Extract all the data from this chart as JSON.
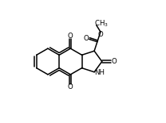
{
  "bg_color": "#ffffff",
  "line_color": "#000000",
  "line_width": 1.1,
  "figsize": [
    2.08,
    1.55
  ],
  "dpi": 100,
  "xlim": [
    0,
    10
  ],
  "ylim": [
    0,
    7.5
  ]
}
